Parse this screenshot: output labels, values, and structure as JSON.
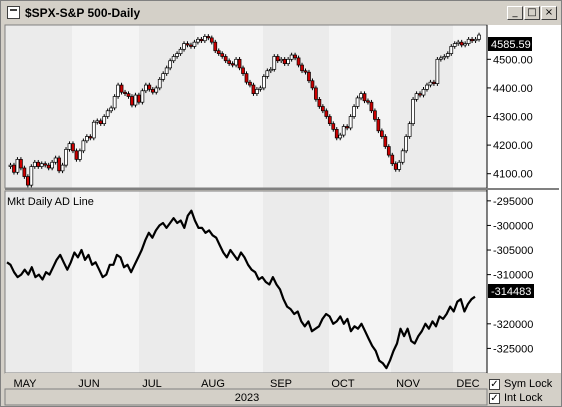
{
  "window": {
    "title": "$SPX-S&P 500-Daily",
    "buttons": {
      "minimize": "_",
      "maximize": "□",
      "close": "×"
    }
  },
  "upper_panel": {
    "current_value_label": "4585.59",
    "y_ticks": [
      "4500.00",
      "4400.00",
      "4300.00",
      "4200.00",
      "4100.00"
    ]
  },
  "lower_panel": {
    "indicator_label": "Mkt Daily AD Line",
    "current_value_label": "-314483",
    "y_ticks": [
      "-295000",
      "-300000",
      "-305000",
      "-310000",
      "-320000",
      "-325000"
    ]
  },
  "x_axis": {
    "months": [
      "MAY",
      "JUN",
      "JUL",
      "AUG",
      "SEP",
      "OCT",
      "NOV",
      "DEC"
    ],
    "year": "2023"
  },
  "controls": {
    "sym_lock": {
      "label": "Sym Lock",
      "checked": true
    },
    "int_lock": {
      "label": "Int Lock",
      "checked": true
    }
  },
  "colors": {
    "up_candle": "#ffffff",
    "down_candle": "#cc0000",
    "line": "#000000",
    "value_box_bg": "#000000",
    "value_box_text": "#ffffff"
  },
  "chart_data": [
    {
      "type": "candlestick",
      "title": "$SPX-S&P 500-Daily",
      "x_labels": [
        "MAY",
        "JUN",
        "JUL",
        "AUG",
        "SEP",
        "OCT",
        "NOV",
        "DEC"
      ],
      "ylim": [
        4050,
        4620
      ],
      "close": [
        4130,
        4105,
        4150,
        4120,
        4090,
        4060,
        4125,
        4140,
        4125,
        4135,
        4130,
        4120,
        4140,
        4155,
        4110,
        4130,
        4185,
        4205,
        4180,
        4150,
        4180,
        4215,
        4230,
        4225,
        4280,
        4285,
        4275,
        4300,
        4320,
        4330,
        4370,
        4410,
        4385,
        4380,
        4370,
        4340,
        4375,
        4350,
        4390,
        4410,
        4395,
        4385,
        4400,
        4430,
        4450,
        4470,
        4495,
        4510,
        4520,
        4535,
        4555,
        4550,
        4545,
        4560,
        4570,
        4565,
        4580,
        4575,
        4560,
        4530,
        4520,
        4510,
        4495,
        4485,
        4480,
        4500,
        4470,
        4450,
        4420,
        4410,
        4380,
        4395,
        4400,
        4440,
        4460,
        4465,
        4510,
        4495,
        4500,
        4485,
        4500,
        4515,
        4505,
        4480,
        4460,
        4455,
        4425,
        4400,
        4360,
        4335,
        4320,
        4300,
        4275,
        4255,
        4225,
        4235,
        4265,
        4260,
        4300,
        4335,
        4365,
        4380,
        4355,
        4350,
        4320,
        4290,
        4250,
        4230,
        4195,
        4165,
        4135,
        4115,
        4140,
        4180,
        4230,
        4275,
        4360,
        4380,
        4375,
        4395,
        4410,
        4420,
        4415,
        4500,
        4505,
        4510,
        4520,
        4545,
        4555,
        4560,
        4550,
        4555,
        4570,
        4565,
        4570,
        4585
      ]
    },
    {
      "type": "line",
      "title": "Mkt Daily AD Line",
      "ylim": [
        -330000,
        -293000
      ],
      "values": [
        -307500,
        -308000,
        -309500,
        -310500,
        -310000,
        -309000,
        -310000,
        -308500,
        -310500,
        -310000,
        -311000,
        -309500,
        -310000,
        -308500,
        -307000,
        -306000,
        -307500,
        -309000,
        -307500,
        -305500,
        -306500,
        -305000,
        -307000,
        -306000,
        -308000,
        -307500,
        -309000,
        -310500,
        -310000,
        -308000,
        -308000,
        -306000,
        -306500,
        -308500,
        -308000,
        -309500,
        -308000,
        -306500,
        -305000,
        -303000,
        -301500,
        -302500,
        -301000,
        -300000,
        -299500,
        -300500,
        -299500,
        -298500,
        -299500,
        -299000,
        -300500,
        -298000,
        -297000,
        -299000,
        -300500,
        -300500,
        -301500,
        -301000,
        -302000,
        -302500,
        -304000,
        -305500,
        -306500,
        -305000,
        -306000,
        -307000,
        -305500,
        -306500,
        -308000,
        -309000,
        -309500,
        -311000,
        -310500,
        -311500,
        -312000,
        -310500,
        -312000,
        -313000,
        -315000,
        -316500,
        -317000,
        -318000,
        -317500,
        -319500,
        -320500,
        -319500,
        -321500,
        -321000,
        -320500,
        -319000,
        -318000,
        -318500,
        -320000,
        -319500,
        -318500,
        -320000,
        -319000,
        -321500,
        -320500,
        -321000,
        -320000,
        -321500,
        -323000,
        -324500,
        -325500,
        -327500,
        -328000,
        -329000,
        -327500,
        -325500,
        -324000,
        -321000,
        -322500,
        -321000,
        -323500,
        -324000,
        -322500,
        -321500,
        -320000,
        -321000,
        -319500,
        -320500,
        -318500,
        -319000,
        -318000,
        -316500,
        -317500,
        -315500,
        -315000,
        -317500,
        -316000,
        -315000,
        -314483
      ]
    }
  ]
}
